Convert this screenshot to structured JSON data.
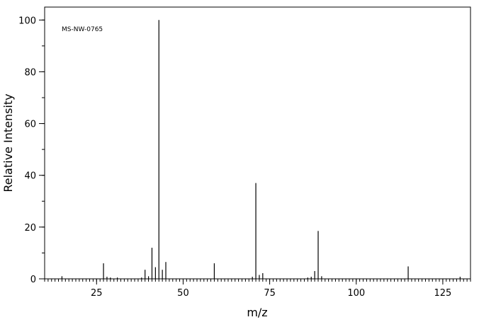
{
  "chart_data": {
    "type": "bar",
    "annotation": "MS-NW-0765",
    "xlabel": "m/z",
    "ylabel": "Relative Intensity",
    "xlim": [
      10,
      133
    ],
    "ylim": [
      0,
      105
    ],
    "x_ticks": [
      25,
      50,
      75,
      100,
      125
    ],
    "y_ticks": [
      0,
      20,
      40,
      60,
      80,
      100
    ],
    "x_minor_step": 1,
    "y_minor_step": 10,
    "grid": false,
    "legend": "none",
    "peaks": [
      {
        "x": 15,
        "y": 1.0
      },
      {
        "x": 27,
        "y": 6.0
      },
      {
        "x": 28,
        "y": 0.8
      },
      {
        "x": 29,
        "y": 0.5
      },
      {
        "x": 31,
        "y": 0.5
      },
      {
        "x": 38,
        "y": 0.5
      },
      {
        "x": 39,
        "y": 3.5
      },
      {
        "x": 40,
        "y": 1.0
      },
      {
        "x": 41,
        "y": 12.0
      },
      {
        "x": 42,
        "y": 4.5
      },
      {
        "x": 43,
        "y": 100.0
      },
      {
        "x": 44,
        "y": 3.5
      },
      {
        "x": 45,
        "y": 6.5
      },
      {
        "x": 59,
        "y": 6.0
      },
      {
        "x": 70,
        "y": 0.8
      },
      {
        "x": 71,
        "y": 37.0
      },
      {
        "x": 72,
        "y": 1.5
      },
      {
        "x": 73,
        "y": 2.2
      },
      {
        "x": 86,
        "y": 0.5
      },
      {
        "x": 87,
        "y": 0.8
      },
      {
        "x": 88,
        "y": 3.0
      },
      {
        "x": 89,
        "y": 18.5
      },
      {
        "x": 90,
        "y": 1.0
      },
      {
        "x": 115,
        "y": 4.8
      },
      {
        "x": 130,
        "y": 0.8
      }
    ]
  }
}
